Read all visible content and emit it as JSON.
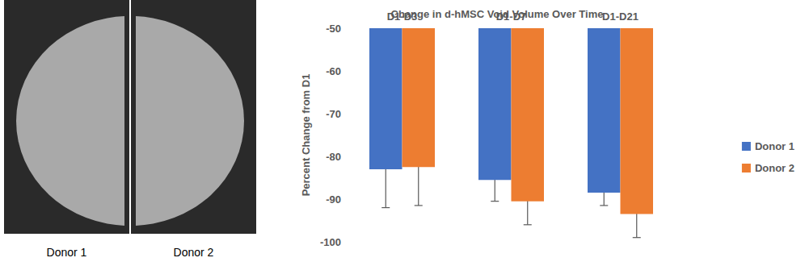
{
  "panels": {
    "images": [
      "Donor 1",
      "Donor 2"
    ]
  },
  "chart_data": {
    "type": "bar",
    "title": "Change in d-hMSC Void Volume Over Time",
    "y_label": "Percent Change from D1",
    "categories": [
      "D1-D3",
      "D1-D7",
      "D1-D21"
    ],
    "series": [
      {
        "name": "Donor 1",
        "color": "#4472c4",
        "values": [
          -83,
          -85.5,
          -88.5
        ],
        "errors": [
          9,
          5,
          3
        ]
      },
      {
        "name": "Donor 2",
        "color": "#ed7d31",
        "values": [
          -82.5,
          -90.5,
          -93.5
        ],
        "errors": [
          9,
          5.5,
          5.5
        ]
      }
    ],
    "ylim": [
      -100,
      -50
    ],
    "yticks": [
      -100,
      -90,
      -80,
      -70,
      -60,
      -50
    ],
    "grid": false,
    "legend": "right"
  }
}
